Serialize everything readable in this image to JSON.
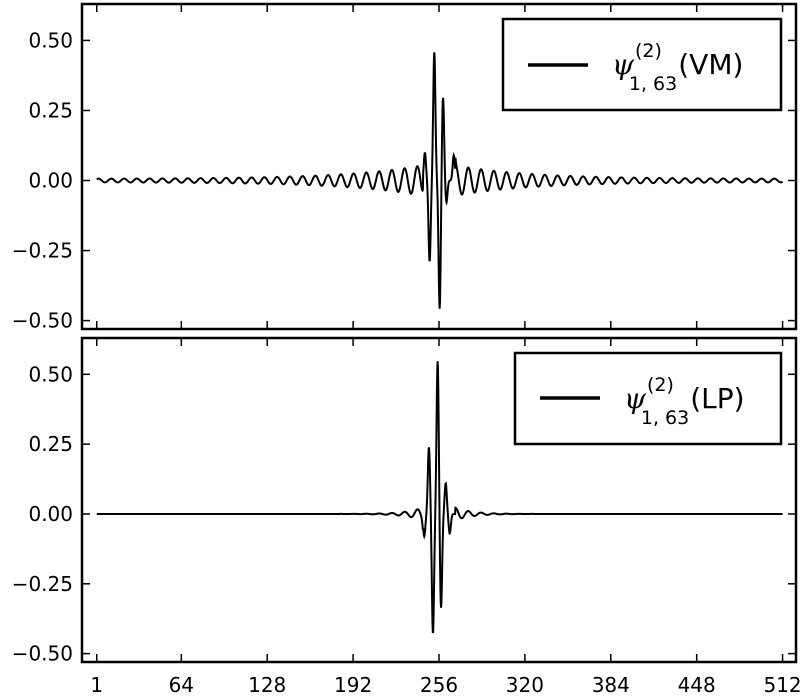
{
  "chart_data": [
    {
      "type": "line",
      "series": [
        {
          "name": "ψ(2)1,63(VM)",
          "stroke": "#000000"
        }
      ],
      "legend": {
        "symbol": "ψ",
        "superscript": "(2)",
        "subscript": "1, 63",
        "suffix": "(VM)",
        "placement": "top-right"
      },
      "xlim": [
        -10,
        522
      ],
      "ylim": [
        -0.53,
        0.63
      ],
      "yticks": [
        -0.5,
        -0.25,
        0.0,
        0.25,
        0.5
      ],
      "ytick_labels": [
        "−0.50",
        "−0.25",
        "0.00",
        "0.25",
        "0.50"
      ],
      "grid": false,
      "shape": {
        "n": 512,
        "center": 256,
        "period": 9.5,
        "peaks": [
          [
            252.5,
            0.46
          ],
          [
            256.5,
            -0.46
          ],
          [
            249.0,
            -0.29
          ],
          [
            259.0,
            0.3
          ],
          [
            245.5,
            0.1
          ],
          [
            261.5,
            -0.08
          ],
          [
            267.0,
            0.09
          ]
        ],
        "baseline_amp": 0.006,
        "envelope_decay": 0.018
      }
    },
    {
      "type": "line",
      "series": [
        {
          "name": "ψ(2)1,63(LP)",
          "stroke": "#000000"
        }
      ],
      "legend": {
        "symbol": "ψ",
        "superscript": "(2)",
        "subscript": "1, 63",
        "suffix": "(LP)",
        "placement": "top-right"
      },
      "xlim": [
        -10,
        522
      ],
      "ylim": [
        -0.53,
        0.63
      ],
      "xticks": [
        1,
        64,
        128,
        192,
        256,
        320,
        384,
        448,
        512
      ],
      "xtick_labels": [
        "1",
        "64",
        "128",
        "192",
        "256",
        "320",
        "384",
        "448",
        "512"
      ],
      "yticks": [
        -0.5,
        -0.25,
        0.0,
        0.25,
        0.5
      ],
      "ytick_labels": [
        "−0.50",
        "−0.25",
        "0.00",
        "0.25",
        "0.50"
      ],
      "grid": false,
      "shape": {
        "n": 512,
        "center": 256,
        "period": 9.5,
        "peaks": [
          [
            255.0,
            0.55
          ],
          [
            251.5,
            -0.43
          ],
          [
            257.5,
            -0.34
          ],
          [
            248.5,
            0.24
          ],
          [
            261.0,
            0.11
          ],
          [
            245.0,
            -0.08
          ],
          [
            264.0,
            -0.07
          ]
        ],
        "baseline_amp": 0.0,
        "envelope_decay": 0.08
      }
    }
  ]
}
